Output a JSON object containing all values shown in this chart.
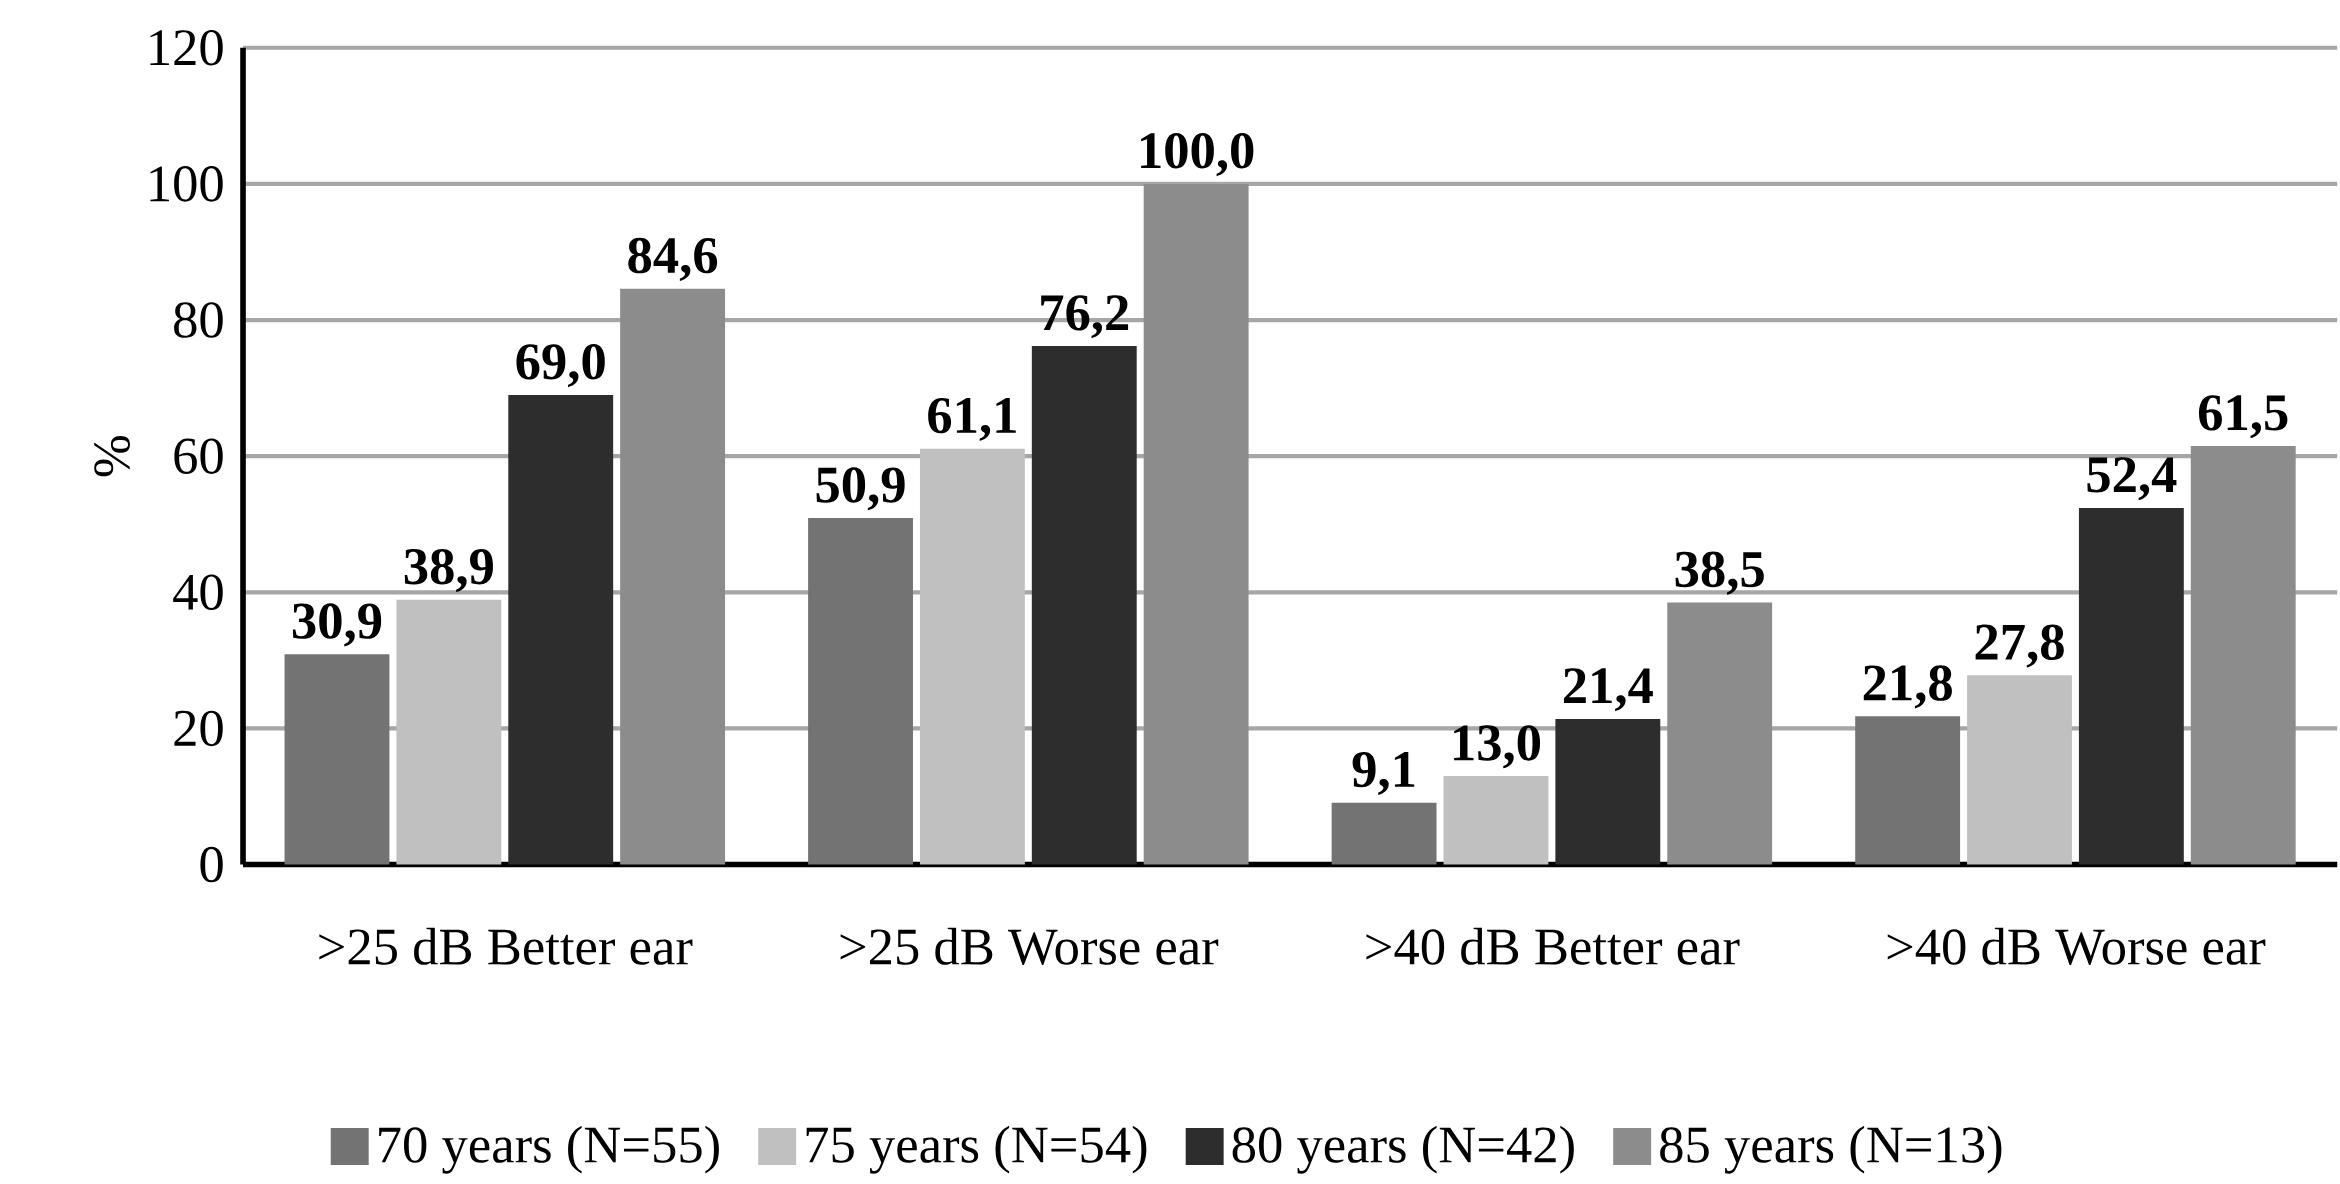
{
  "chart_data": {
    "type": "bar",
    "ylabel": "%",
    "categories": [
      ">25 dB Better ear",
      ">25 dB Worse ear",
      ">40 dB Better ear",
      ">40 dB Worse ear"
    ],
    "series": [
      {
        "name": "70 years (N=55)",
        "color": "#737373",
        "values": [
          30.9,
          50.9,
          9.1,
          21.8
        ],
        "value_labels": [
          "30,9",
          "50,9",
          "9,1",
          "21,8"
        ]
      },
      {
        "name": "75 years (N=54)",
        "color": "#c0c0c0",
        "values": [
          38.9,
          61.1,
          13.0,
          27.8
        ],
        "value_labels": [
          "38,9",
          "61,1",
          "13,0",
          "27,8"
        ]
      },
      {
        "name": "80 years (N=42)",
        "color": "#2d2d2d",
        "values": [
          69.0,
          76.2,
          21.4,
          52.4
        ],
        "value_labels": [
          "69,0",
          "76,2",
          "21,4",
          "52,4"
        ]
      },
      {
        "name": "85 years (N=13)",
        "color": "#8c8c8c",
        "values": [
          84.6,
          100.0,
          38.5,
          61.5
        ],
        "value_labels": [
          "84,6",
          "100,0",
          "38,5",
          "61,5"
        ]
      }
    ],
    "ylim": [
      0,
      120
    ],
    "yticks": [
      0,
      20,
      40,
      60,
      80,
      100,
      120
    ],
    "grid": "y",
    "legend": "bottom"
  }
}
